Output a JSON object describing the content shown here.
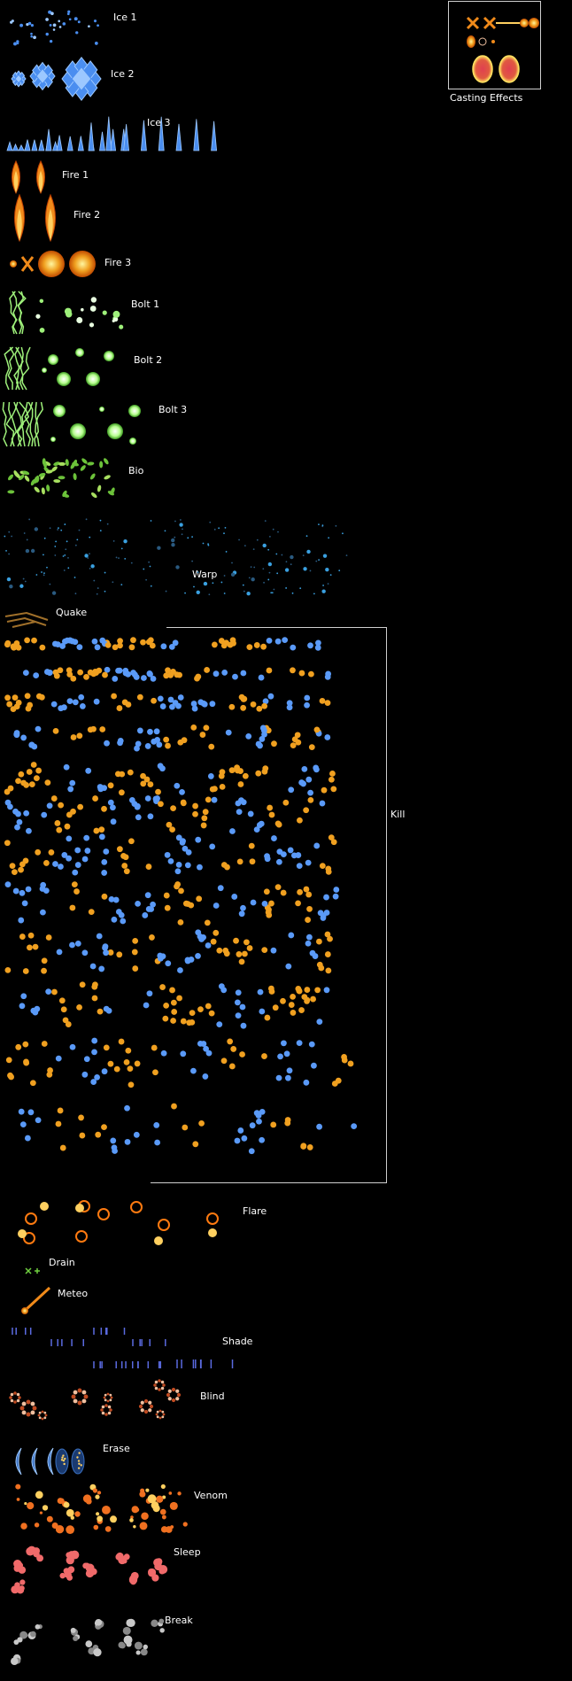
{
  "labels": {
    "ice1": "Ice 1",
    "ice2": "Ice 2",
    "ice3": "Ice 3",
    "fire1": "Fire 1",
    "fire2": "Fire 2",
    "fire3": "Fire 3",
    "bolt1": "Bolt 1",
    "bolt2": "Bolt 2",
    "bolt3": "Bolt 3",
    "bio": "Bio",
    "warp": "Warp",
    "quake": "Quake",
    "kill": "Kill",
    "flare": "Flare",
    "drain": "Drain",
    "meteo": "Meteo",
    "shade": "Shade",
    "blind": "Blind",
    "erase": "Erase",
    "venom": "Venom",
    "sleep": "Sleep",
    "break": "Break",
    "casting": "Casting Effects"
  },
  "colors": {
    "background": "#000000",
    "text": "#ffffff",
    "ice": "#4a8ef0",
    "ice_light": "#9cc8ff",
    "fire": "#f08a1a",
    "fire_light": "#ffd060",
    "bolt": "#9ef07a",
    "bolt_light": "#e8ffe0",
    "bio": "#6cc23a",
    "warp": "#3aa0e0",
    "quake": "#a0702a",
    "kill_blue": "#5a9af8",
    "kill_orange": "#f0a020",
    "flare": "#ff7a10",
    "drain": "#70d040",
    "shade": "#5a6ae0",
    "blind": "#f0c0a0",
    "erase": "#3a70c0",
    "venom": "#f07020",
    "sleep": "#f06a6a",
    "break": "#c8c8c8",
    "casting": "#e05050"
  },
  "icons": {
    "ice": "ice-crystal-sprite",
    "fire": "flame-sprite",
    "bolt": "lightning-sprite",
    "bio": "bio-leaf-sprite",
    "warp": "warp-particle-sprite",
    "quake": "quake-rock-sprite",
    "kill": "kill-orb-sprite",
    "flare": "flare-ring-sprite",
    "drain": "drain-cross-sprite",
    "meteo": "meteor-sprite",
    "shade": "shade-spike-sprite",
    "blind": "blind-flower-sprite",
    "erase": "erase-crescent-sprite",
    "venom": "venom-splash-sprite",
    "sleep": "sleep-cloud-sprite",
    "break": "break-stone-sprite",
    "casting": "casting-aura-sprite"
  }
}
